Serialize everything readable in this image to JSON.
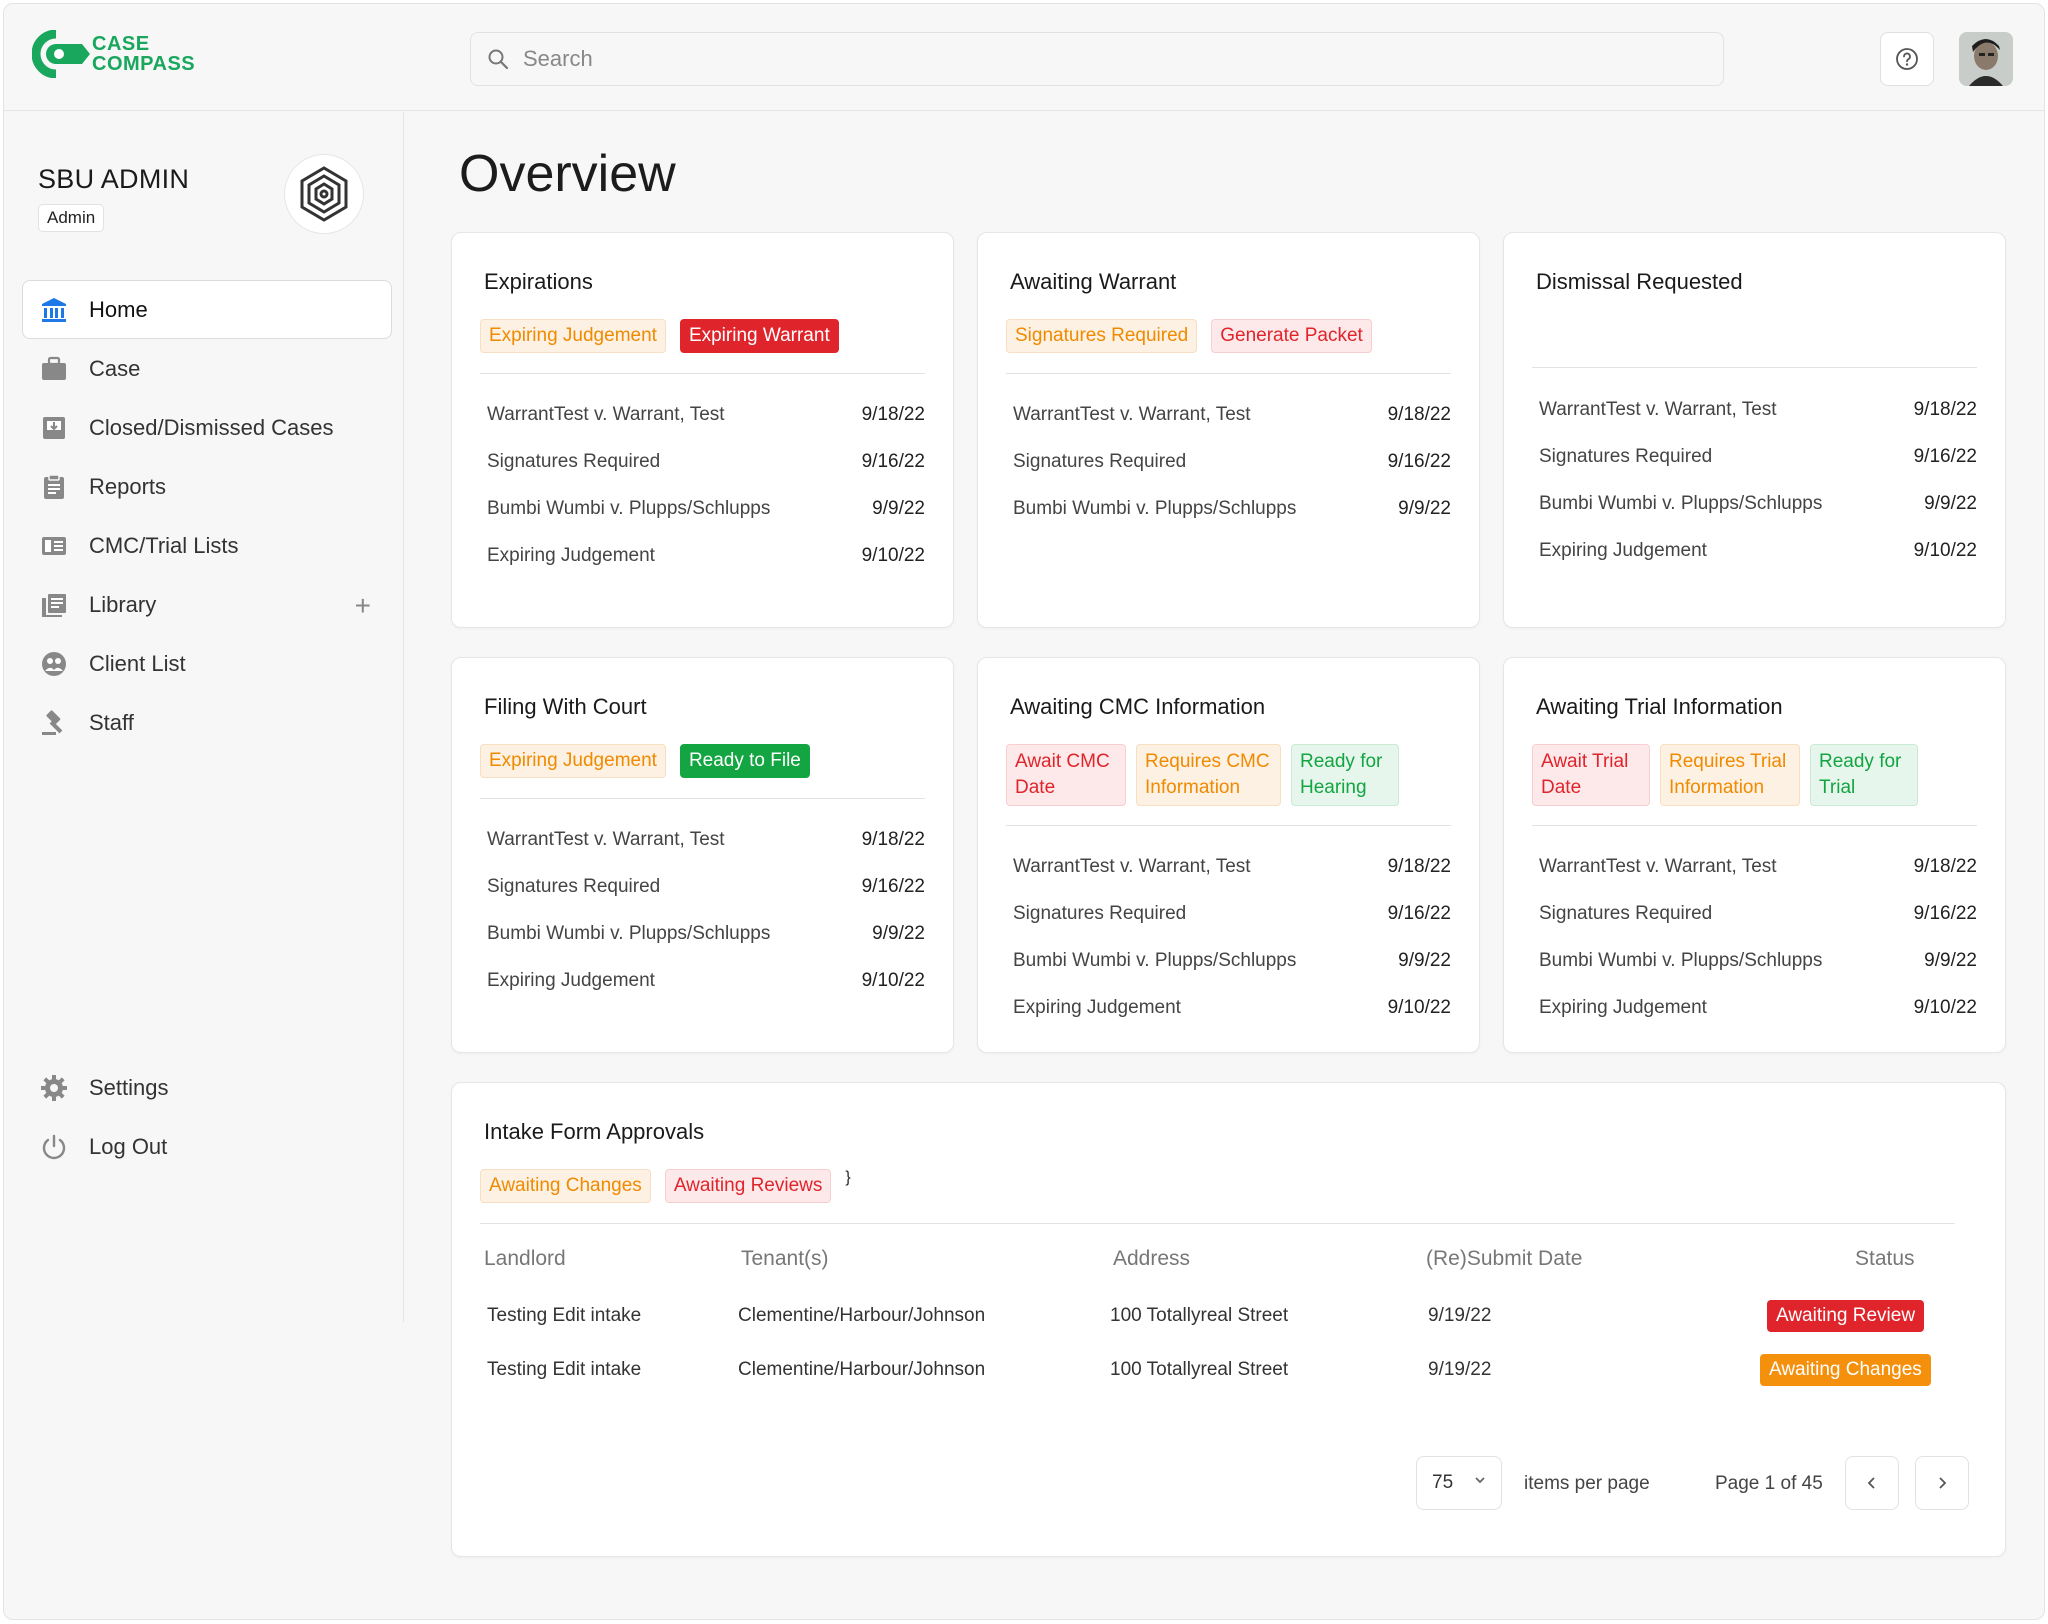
{
  "brand": {
    "line1": "CASE",
    "line2": "COMPASS",
    "color": "#18a75d"
  },
  "search": {
    "placeholder": "Search"
  },
  "org": {
    "name": "SBU ADMIN",
    "role": "Admin"
  },
  "nav": [
    {
      "label": "Home",
      "icon": "bank-icon",
      "active": true
    },
    {
      "label": "Case",
      "icon": "briefcase-icon"
    },
    {
      "label": "Closed/Dismissed Cases",
      "icon": "archive-icon"
    },
    {
      "label": "Reports",
      "icon": "clipboard-icon"
    },
    {
      "label": "CMC/Trial Lists",
      "icon": "list-icon"
    },
    {
      "label": "Library",
      "icon": "book-icon",
      "action": "+"
    },
    {
      "label": "Client List",
      "icon": "users-icon"
    },
    {
      "label": "Staff",
      "icon": "gavel-icon"
    }
  ],
  "nav_bottom": [
    {
      "label": "Settings",
      "icon": "gear-icon"
    },
    {
      "label": "Log Out",
      "icon": "power-icon"
    }
  ],
  "page": {
    "title": "Overview"
  },
  "cards": [
    {
      "title": "Expirations",
      "tags": [
        "Expiring Judgement",
        "Expiring Warrant"
      ],
      "rows": [
        {
          "name": "WarrantTest v. Warrant, Test",
          "date": "9/18/22"
        },
        {
          "name": "Signatures Required",
          "date": "9/16/22"
        },
        {
          "name": "Bumbi Wumbi v. Plupps/Schlupps",
          "date": "9/9/22"
        },
        {
          "name": "Expiring Judgement",
          "date": "9/10/22"
        }
      ]
    },
    {
      "title": "Awaiting Warrant",
      "tags": [
        "Signatures Required",
        "Generate Packet"
      ],
      "rows": [
        {
          "name": "WarrantTest v. Warrant, Test",
          "date": "9/18/22"
        },
        {
          "name": "Signatures Required",
          "date": "9/16/22"
        },
        {
          "name": "Bumbi Wumbi v. Plupps/Schlupps",
          "date": "9/9/22"
        }
      ]
    },
    {
      "title": "Dismissal Requested",
      "tags": [],
      "rows": [
        {
          "name": "WarrantTest v. Warrant, Test",
          "date": "9/18/22"
        },
        {
          "name": "Signatures Required",
          "date": "9/16/22"
        },
        {
          "name": "Bumbi Wumbi v. Plupps/Schlupps",
          "date": "9/9/22"
        },
        {
          "name": "Expiring Judgement",
          "date": "9/10/22"
        }
      ]
    },
    {
      "title": "Filing With Court",
      "tags": [
        "Expiring Judgement",
        "Ready to File"
      ],
      "rows": [
        {
          "name": "WarrantTest v. Warrant, Test",
          "date": "9/18/22"
        },
        {
          "name": "Signatures Required",
          "date": "9/16/22"
        },
        {
          "name": "Bumbi Wumbi v. Plupps/Schlupps",
          "date": "9/9/22"
        },
        {
          "name": "Expiring Judgement",
          "date": "9/10/22"
        }
      ]
    },
    {
      "title": "Awaiting CMC Information",
      "tags": [
        "Await CMC Date",
        "Requires CMC Information",
        "Ready for Hearing"
      ],
      "rows": [
        {
          "name": "WarrantTest v. Warrant, Test",
          "date": "9/18/22"
        },
        {
          "name": "Signatures Required",
          "date": "9/16/22"
        },
        {
          "name": "Bumbi Wumbi v. Plupps/Schlupps",
          "date": "9/9/22"
        },
        {
          "name": "Expiring Judgement",
          "date": "9/10/22"
        }
      ]
    },
    {
      "title": "Awaiting Trial Information",
      "tags": [
        "Await Trial Date",
        "Requires Trial Information",
        "Ready for Trial"
      ],
      "rows": [
        {
          "name": "WarrantTest v. Warrant, Test",
          "date": "9/18/22"
        },
        {
          "name": "Signatures Required",
          "date": "9/16/22"
        },
        {
          "name": "Bumbi Wumbi v. Plupps/Schlupps",
          "date": "9/9/22"
        },
        {
          "name": "Expiring Judgement",
          "date": "9/10/22"
        }
      ]
    }
  ],
  "intake": {
    "title": "Intake Form Approvals",
    "tags": [
      "Awaiting Changes",
      "Awaiting Reviews"
    ],
    "columns": [
      "Landlord",
      "Tenant(s)",
      "Address",
      "(Re)Submit Date",
      "Status"
    ],
    "rows": [
      {
        "landlord": "Testing Edit intake",
        "tenants": "Clementine/Harbour/Johnson",
        "address": "100 Totallyreal Street",
        "date": "9/19/22",
        "status": "Awaiting Review"
      },
      {
        "landlord": "Testing Edit intake",
        "tenants": "Clementine/Harbour/Johnson",
        "address": "100 Totallyreal Street",
        "date": "9/19/22",
        "status": "Awaiting Changes"
      }
    ],
    "pagination": {
      "per_page": "75",
      "per_page_label": "items per page",
      "page_label": "Page 1 of 45"
    }
  },
  "colors": {
    "red": "#e0242b",
    "orange": "#f08a00",
    "green": "#13a541"
  }
}
